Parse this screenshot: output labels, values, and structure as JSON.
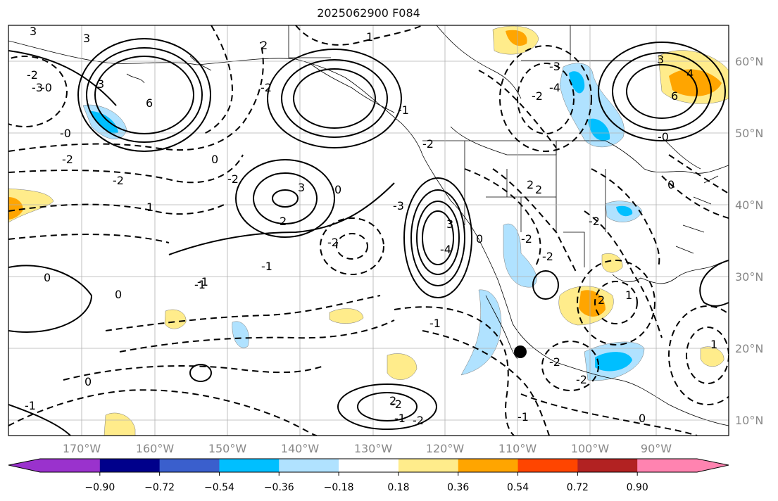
{
  "title": "2025062900 F084",
  "map": {
    "lon_labels": [
      "170°W",
      "160°W",
      "150°W",
      "140°W",
      "130°W",
      "120°W",
      "110°W",
      "100°W",
      "90°W"
    ],
    "lat_labels": [
      "60°N",
      "50°N",
      "40°N",
      "30°N",
      "20°N",
      "10°N"
    ],
    "contour_labels": [
      "3",
      "-2",
      "-0",
      "-0",
      "6",
      "-2",
      "1",
      "3",
      "-3",
      "2",
      "-2",
      "3",
      "-2",
      "-4",
      "3",
      "4",
      "6",
      "-0",
      "1",
      "-1",
      "-2",
      "-3",
      "0",
      "-2",
      "0",
      "-1",
      "3",
      "2",
      "-1",
      "-2",
      "2",
      "-2",
      "-1",
      "-2",
      "-4",
      "3",
      "0",
      "-2",
      "2",
      "-2",
      "2",
      "1",
      "-1",
      "0",
      "-2",
      "-2",
      "-2",
      "1",
      "0",
      "2",
      "-1",
      "-1",
      "0",
      "-3",
      "-2",
      "0",
      "0",
      "-1"
    ]
  },
  "colorbar": {
    "tick_labels": [
      "−0.90",
      "−0.72",
      "−0.54",
      "−0.36",
      "−0.18",
      "0.18",
      "0.36",
      "0.54",
      "0.72",
      "0.90"
    ],
    "colors": [
      "#9a32cd",
      "#00008b",
      "#3a5fcd",
      "#00bfff",
      "#b0e2ff",
      "#ffffff",
      "#ffec8b",
      "#ffa500",
      "#ff4500",
      "#b22222",
      "#ff83b0"
    ]
  }
}
